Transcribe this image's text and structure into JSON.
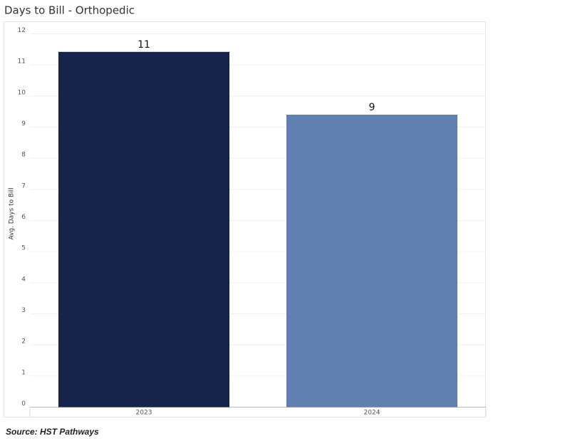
{
  "chart_data": {
    "type": "bar",
    "title": "Days to Bill - Orthopedic",
    "y_label": "Avg. Days to Bill",
    "categories": [
      "2023",
      "2024"
    ],
    "series": [
      {
        "name": "Avg. Days to Bill",
        "values": [
          11.42,
          9.4
        ],
        "value_labels": [
          "11",
          "9"
        ],
        "colors": [
          "#16244b",
          "#5f80b0"
        ]
      }
    ],
    "ylim": [
      0,
      12.4
    ],
    "yticks": [
      0,
      1,
      2,
      3,
      4,
      5,
      6,
      7,
      8,
      9,
      10,
      11,
      12
    ],
    "grid": true,
    "source": "Source: HST Pathways"
  }
}
